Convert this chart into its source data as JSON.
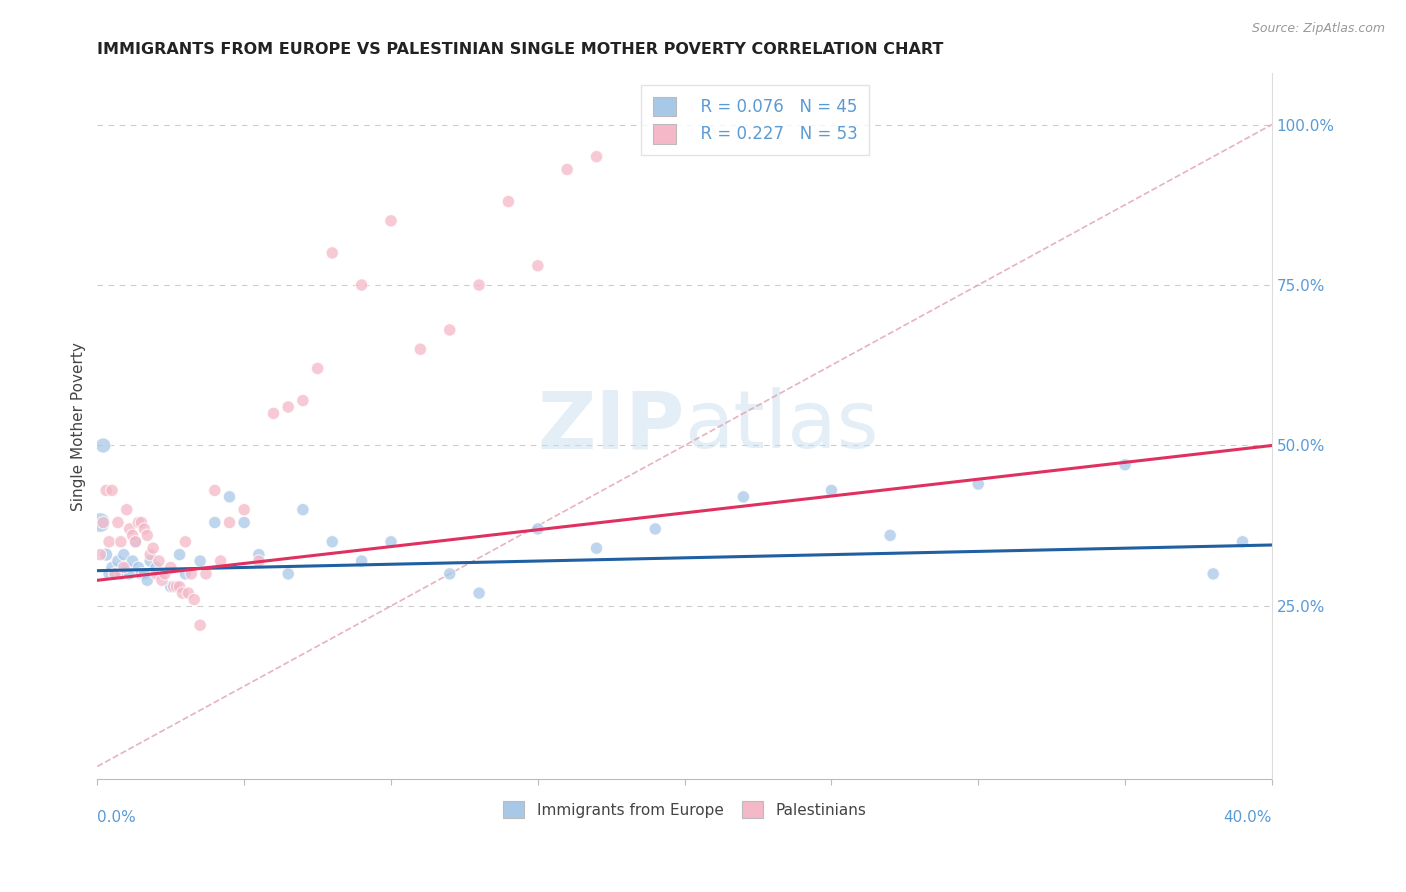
{
  "title": "IMMIGRANTS FROM EUROPE VS PALESTINIAN SINGLE MOTHER POVERTY CORRELATION CHART",
  "source": "Source: ZipAtlas.com",
  "ylabel": "Single Mother Poverty",
  "right_yticks": [
    "100.0%",
    "75.0%",
    "50.0%",
    "25.0%"
  ],
  "right_ytick_vals": [
    1.0,
    0.75,
    0.5,
    0.25
  ],
  "xlim": [
    0.0,
    0.4
  ],
  "ylim": [
    -0.02,
    1.08
  ],
  "legend_R1": "R = 0.076",
  "legend_N1": "N = 45",
  "legend_R2": "R = 0.227",
  "legend_N2": "N = 53",
  "blue_color": "#a8c8e8",
  "pink_color": "#f4b8c8",
  "line_blue": "#2060a0",
  "line_pink": "#e03060",
  "diag_color": "#e0a0b0",
  "label1": "Immigrants from Europe",
  "label2": "Palestinians",
  "blue_line_x0": 0.0,
  "blue_line_y0": 0.305,
  "blue_line_x1": 0.4,
  "blue_line_y1": 0.345,
  "pink_line_x0": 0.0,
  "pink_line_y0": 0.29,
  "pink_line_x1": 0.4,
  "pink_line_y1": 0.5,
  "blue_x": [
    0.001,
    0.002,
    0.003,
    0.004,
    0.005,
    0.006,
    0.007,
    0.008,
    0.009,
    0.01,
    0.011,
    0.012,
    0.013,
    0.014,
    0.015,
    0.016,
    0.017,
    0.018,
    0.02,
    0.022,
    0.025,
    0.028,
    0.03,
    0.035,
    0.04,
    0.045,
    0.05,
    0.055,
    0.065,
    0.07,
    0.08,
    0.09,
    0.1,
    0.12,
    0.13,
    0.15,
    0.17,
    0.19,
    0.22,
    0.25,
    0.27,
    0.3,
    0.35,
    0.38,
    0.39
  ],
  "blue_y": [
    0.38,
    0.5,
    0.33,
    0.3,
    0.31,
    0.3,
    0.32,
    0.3,
    0.33,
    0.31,
    0.3,
    0.32,
    0.35,
    0.31,
    0.3,
    0.3,
    0.29,
    0.32,
    0.31,
    0.3,
    0.28,
    0.33,
    0.3,
    0.32,
    0.38,
    0.42,
    0.38,
    0.33,
    0.3,
    0.4,
    0.35,
    0.32,
    0.35,
    0.3,
    0.27,
    0.37,
    0.34,
    0.37,
    0.42,
    0.43,
    0.36,
    0.44,
    0.47,
    0.3,
    0.35
  ],
  "blue_sizes": [
    200,
    120,
    90,
    80,
    80,
    80,
    80,
    80,
    80,
    80,
    80,
    80,
    80,
    80,
    80,
    80,
    80,
    80,
    80,
    80,
    80,
    80,
    80,
    80,
    80,
    80,
    80,
    80,
    80,
    80,
    80,
    80,
    80,
    80,
    80,
    80,
    80,
    80,
    80,
    80,
    80,
    80,
    80,
    80,
    80
  ],
  "pink_x": [
    0.001,
    0.002,
    0.003,
    0.004,
    0.005,
    0.006,
    0.007,
    0.008,
    0.009,
    0.01,
    0.011,
    0.012,
    0.013,
    0.014,
    0.015,
    0.016,
    0.017,
    0.018,
    0.019,
    0.02,
    0.021,
    0.022,
    0.023,
    0.025,
    0.026,
    0.027,
    0.028,
    0.029,
    0.03,
    0.031,
    0.032,
    0.033,
    0.035,
    0.037,
    0.04,
    0.042,
    0.045,
    0.05,
    0.055,
    0.06,
    0.065,
    0.07,
    0.075,
    0.08,
    0.09,
    0.1,
    0.11,
    0.12,
    0.13,
    0.14,
    0.15,
    0.16,
    0.17
  ],
  "pink_y": [
    0.33,
    0.38,
    0.43,
    0.35,
    0.43,
    0.3,
    0.38,
    0.35,
    0.31,
    0.4,
    0.37,
    0.36,
    0.35,
    0.38,
    0.38,
    0.37,
    0.36,
    0.33,
    0.34,
    0.3,
    0.32,
    0.29,
    0.3,
    0.31,
    0.28,
    0.28,
    0.28,
    0.27,
    0.35,
    0.27,
    0.3,
    0.26,
    0.22,
    0.3,
    0.43,
    0.32,
    0.38,
    0.4,
    0.32,
    0.55,
    0.56,
    0.57,
    0.62,
    0.8,
    0.75,
    0.85,
    0.65,
    0.68,
    0.75,
    0.88,
    0.78,
    0.93,
    0.95
  ],
  "pink_sizes": [
    80,
    80,
    80,
    80,
    80,
    80,
    80,
    80,
    80,
    80,
    80,
    80,
    80,
    80,
    80,
    80,
    80,
    80,
    80,
    80,
    80,
    80,
    80,
    80,
    80,
    80,
    80,
    80,
    80,
    80,
    80,
    80,
    80,
    80,
    80,
    80,
    80,
    80,
    80,
    80,
    80,
    80,
    80,
    80,
    80,
    80,
    80,
    80,
    80,
    80,
    80,
    80,
    80
  ]
}
